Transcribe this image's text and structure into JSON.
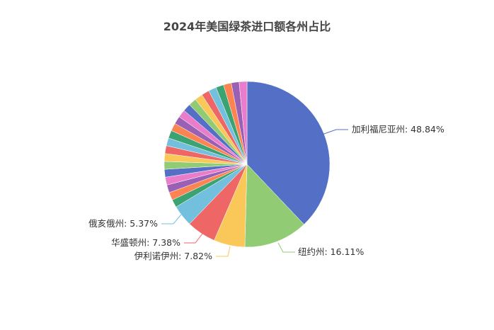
{
  "chart_data": {
    "type": "pie",
    "title": "2024年美国绿茶进口额各州占比",
    "label_format": "{name}: {percent}%",
    "palette": [
      "#5470c6",
      "#91cc75",
      "#fac858",
      "#ee6666",
      "#73c0de",
      "#3ba272",
      "#fc8452",
      "#9a60b4",
      "#ea7ccc"
    ],
    "slices": [
      {
        "name": "加利福尼亚州",
        "percent": 48.84
      },
      {
        "name": "纽约州",
        "percent": 16.11
      },
      {
        "name": "伊利诺伊州",
        "percent": 7.82
      },
      {
        "name": "华盛顿州",
        "percent": 7.38
      },
      {
        "name": "俄亥俄州",
        "percent": 5.37
      }
    ],
    "unlabeled_slice_count": 22,
    "unlabeled_total_percent": 14.48
  }
}
